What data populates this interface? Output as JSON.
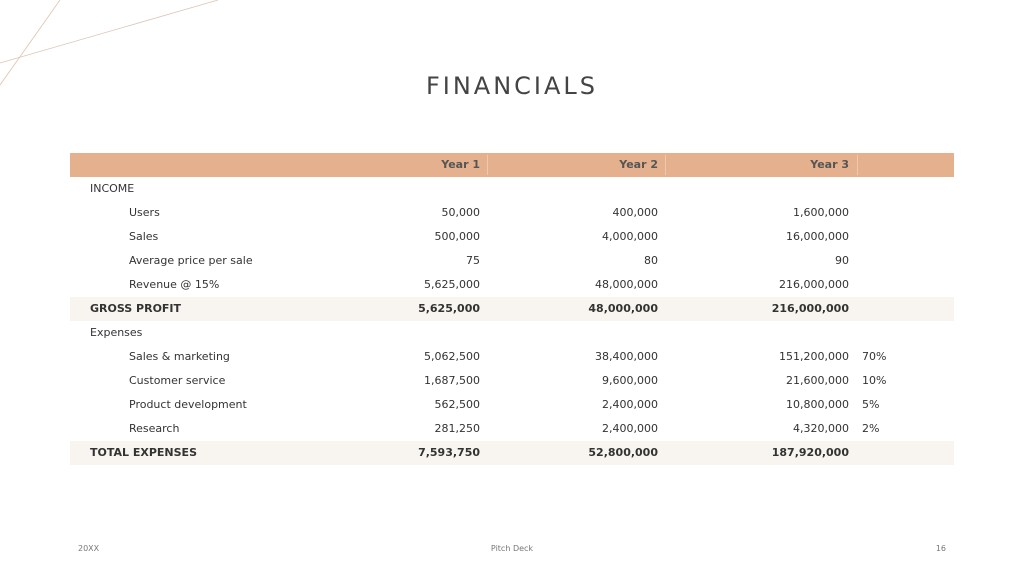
{
  "title": "FINANCIALS",
  "table": {
    "headers": [
      "",
      "Year 1",
      "Year 2",
      "Year 3",
      ""
    ],
    "rows": [
      {
        "label": "INCOME",
        "type": "section",
        "y1": "",
        "y2": "",
        "y3": "",
        "pct": ""
      },
      {
        "label": "Users",
        "type": "item",
        "y1": "50,000",
        "y2": "400,000",
        "y3": "1,600,000",
        "pct": ""
      },
      {
        "label": "Sales",
        "type": "item",
        "y1": "500,000",
        "y2": "4,000,000",
        "y3": "16,000,000",
        "pct": ""
      },
      {
        "label": "Average price per sale",
        "type": "item",
        "y1": "75",
        "y2": "80",
        "y3": "90",
        "pct": ""
      },
      {
        "label": "Revenue @ 15%",
        "type": "item",
        "y1": "5,625,000",
        "y2": "48,000,000",
        "y3": "216,000,000",
        "pct": ""
      },
      {
        "label": "GROSS PROFIT",
        "type": "total",
        "y1": "5,625,000",
        "y2": "48,000,000",
        "y3": "216,000,000",
        "pct": ""
      },
      {
        "label": "Expenses",
        "type": "section",
        "y1": "",
        "y2": "",
        "y3": "",
        "pct": ""
      },
      {
        "label": "Sales & marketing",
        "type": "item",
        "y1": "5,062,500",
        "y2": "38,400,000",
        "y3": "151,200,000",
        "pct": "70%"
      },
      {
        "label": "Customer service",
        "type": "item",
        "y1": "1,687,500",
        "y2": "9,600,000",
        "y3": "21,600,000",
        "pct": "10%"
      },
      {
        "label": "Product development",
        "type": "item",
        "y1": "562,500",
        "y2": "2,400,000",
        "y3": "10,800,000",
        "pct": "5%"
      },
      {
        "label": "Research",
        "type": "item",
        "y1": "281,250",
        "y2": "2,400,000",
        "y3": "4,320,000",
        "pct": "2%"
      },
      {
        "label": "TOTAL EXPENSES",
        "type": "total",
        "y1": "7,593,750",
        "y2": "52,800,000",
        "y3": "187,920,000",
        "pct": ""
      }
    ]
  },
  "footer": {
    "left": "20XX",
    "center": "Pitch Deck",
    "right": "16"
  },
  "colors": {
    "header": "#e5b08d",
    "band": "#f8f4ef",
    "deco_line": "#dcc4b4"
  }
}
